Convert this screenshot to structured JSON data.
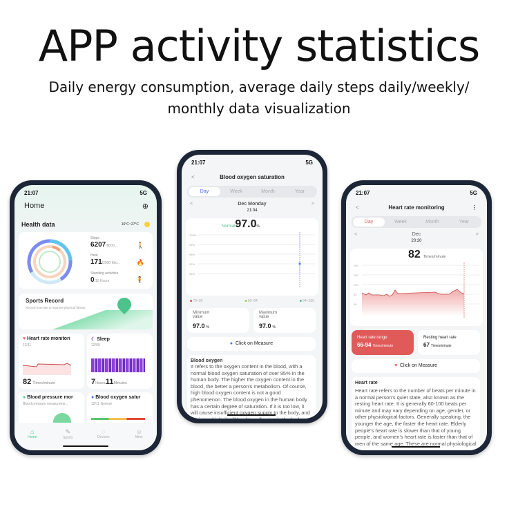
{
  "headline": "APP activity statistics",
  "subtitle_line1": "Daily energy consumption, average daily steps daily/weekly/",
  "subtitle_line2": "monthly data visualization",
  "phone1": {
    "time": "21:07",
    "network": "5G",
    "title": "Home",
    "section": "Health data",
    "weather": "16°C~27°C",
    "steps_label": "Steps",
    "steps_value": "6207",
    "steps_goal": "/8000...",
    "heat_label": "Heat",
    "heat_value": "171",
    "heat_goal": "/2000 Kilo...",
    "stand_label": "Standing activities",
    "stand_value": "0",
    "stand_goal": "/10 Hours",
    "sports_title": "Sports Record",
    "sports_desc": "Record exercise to improve physical fitness",
    "hr_title": "Heart rate monitori",
    "hr_date": "12/11",
    "hr_value": "82",
    "hr_unit": "Times/minute",
    "sleep_title": "Sleep",
    "sleep_date": "12/09",
    "sleep_h": "7",
    "sleep_h_unit": "Hours",
    "sleep_m": "11",
    "sleep_m_unit": "Minutes",
    "bp_title": "Blood pressure mor",
    "bp_desc": "Blood pressure measureme...",
    "bo_title": "Blood oxygen satur",
    "bo_desc": "12/11 Normal",
    "tabs": [
      "Home",
      "Sports",
      "Devices",
      "Mine"
    ],
    "accent": "#4cc38a"
  },
  "phone2": {
    "time": "21:07",
    "network": "5G",
    "title": "Blood oxygen saturation",
    "periods": [
      "Day",
      "Week",
      "Month",
      "Year"
    ],
    "date": "Dec Monday",
    "reading_time": "21:04",
    "status": "Normal",
    "value": "97.0",
    "unit": "%",
    "y_ticks": [
      "100%",
      "99%",
      "98%",
      "97%",
      "96%"
    ],
    "legend": [
      "70~90",
      "90~94",
      "94~100"
    ],
    "min_label": "Minimum value",
    "min_value": "97.0",
    "max_label": "Maximum value",
    "max_value": "97.0",
    "measure": "Click on Measure",
    "info_title": "Blood oxygen",
    "info_text": "It refers to the oxygen content in the blood, with a normal blood oxygen saturation of over 95% in the human body. The higher the oxygen content in the blood, the better a person's metabolism. Of course, high blood oxygen content is not a good phenomenon. The blood oxygen in the human body has a certain degree of saturation. If it is too low, it will cause insufficient oxygen supply to the body, and if it is too high, it will lead to cell aging in the body.",
    "accent": "#4a6cf7"
  },
  "phone3": {
    "time": "21:07",
    "network": "5G",
    "title": "Heart rate monitoring",
    "periods": [
      "Day",
      "Week",
      "Month",
      "Year"
    ],
    "date": "Dec",
    "reading_time": "20:20",
    "value": "82",
    "unit": "Times/minute",
    "y_ticks": [
      "200",
      "160",
      "120",
      "80",
      "40"
    ],
    "range_label": "Heart rate range",
    "range_value": "66-94",
    "range_unit": "Times/minute",
    "resting_label": "Resting heart rate",
    "resting_value": "67",
    "resting_unit": "Times/minute",
    "measure": "Click on Measure",
    "info_title": "Heart rate",
    "info_text": "Heart rate refers to the number of beats per minute in a normal person's quiet state, also known as the resting heart rate. It is generally 60-100 beats per minute and may vary depending on age, gender, or other physiological factors. Generally speaking, the younger the age, the faster the heart rate. Elderly people's heart rate is slower than that of young people, and women's heart rate is faster than that of men of the same age. These are normal physiological",
    "accent": "#e05a5a"
  }
}
